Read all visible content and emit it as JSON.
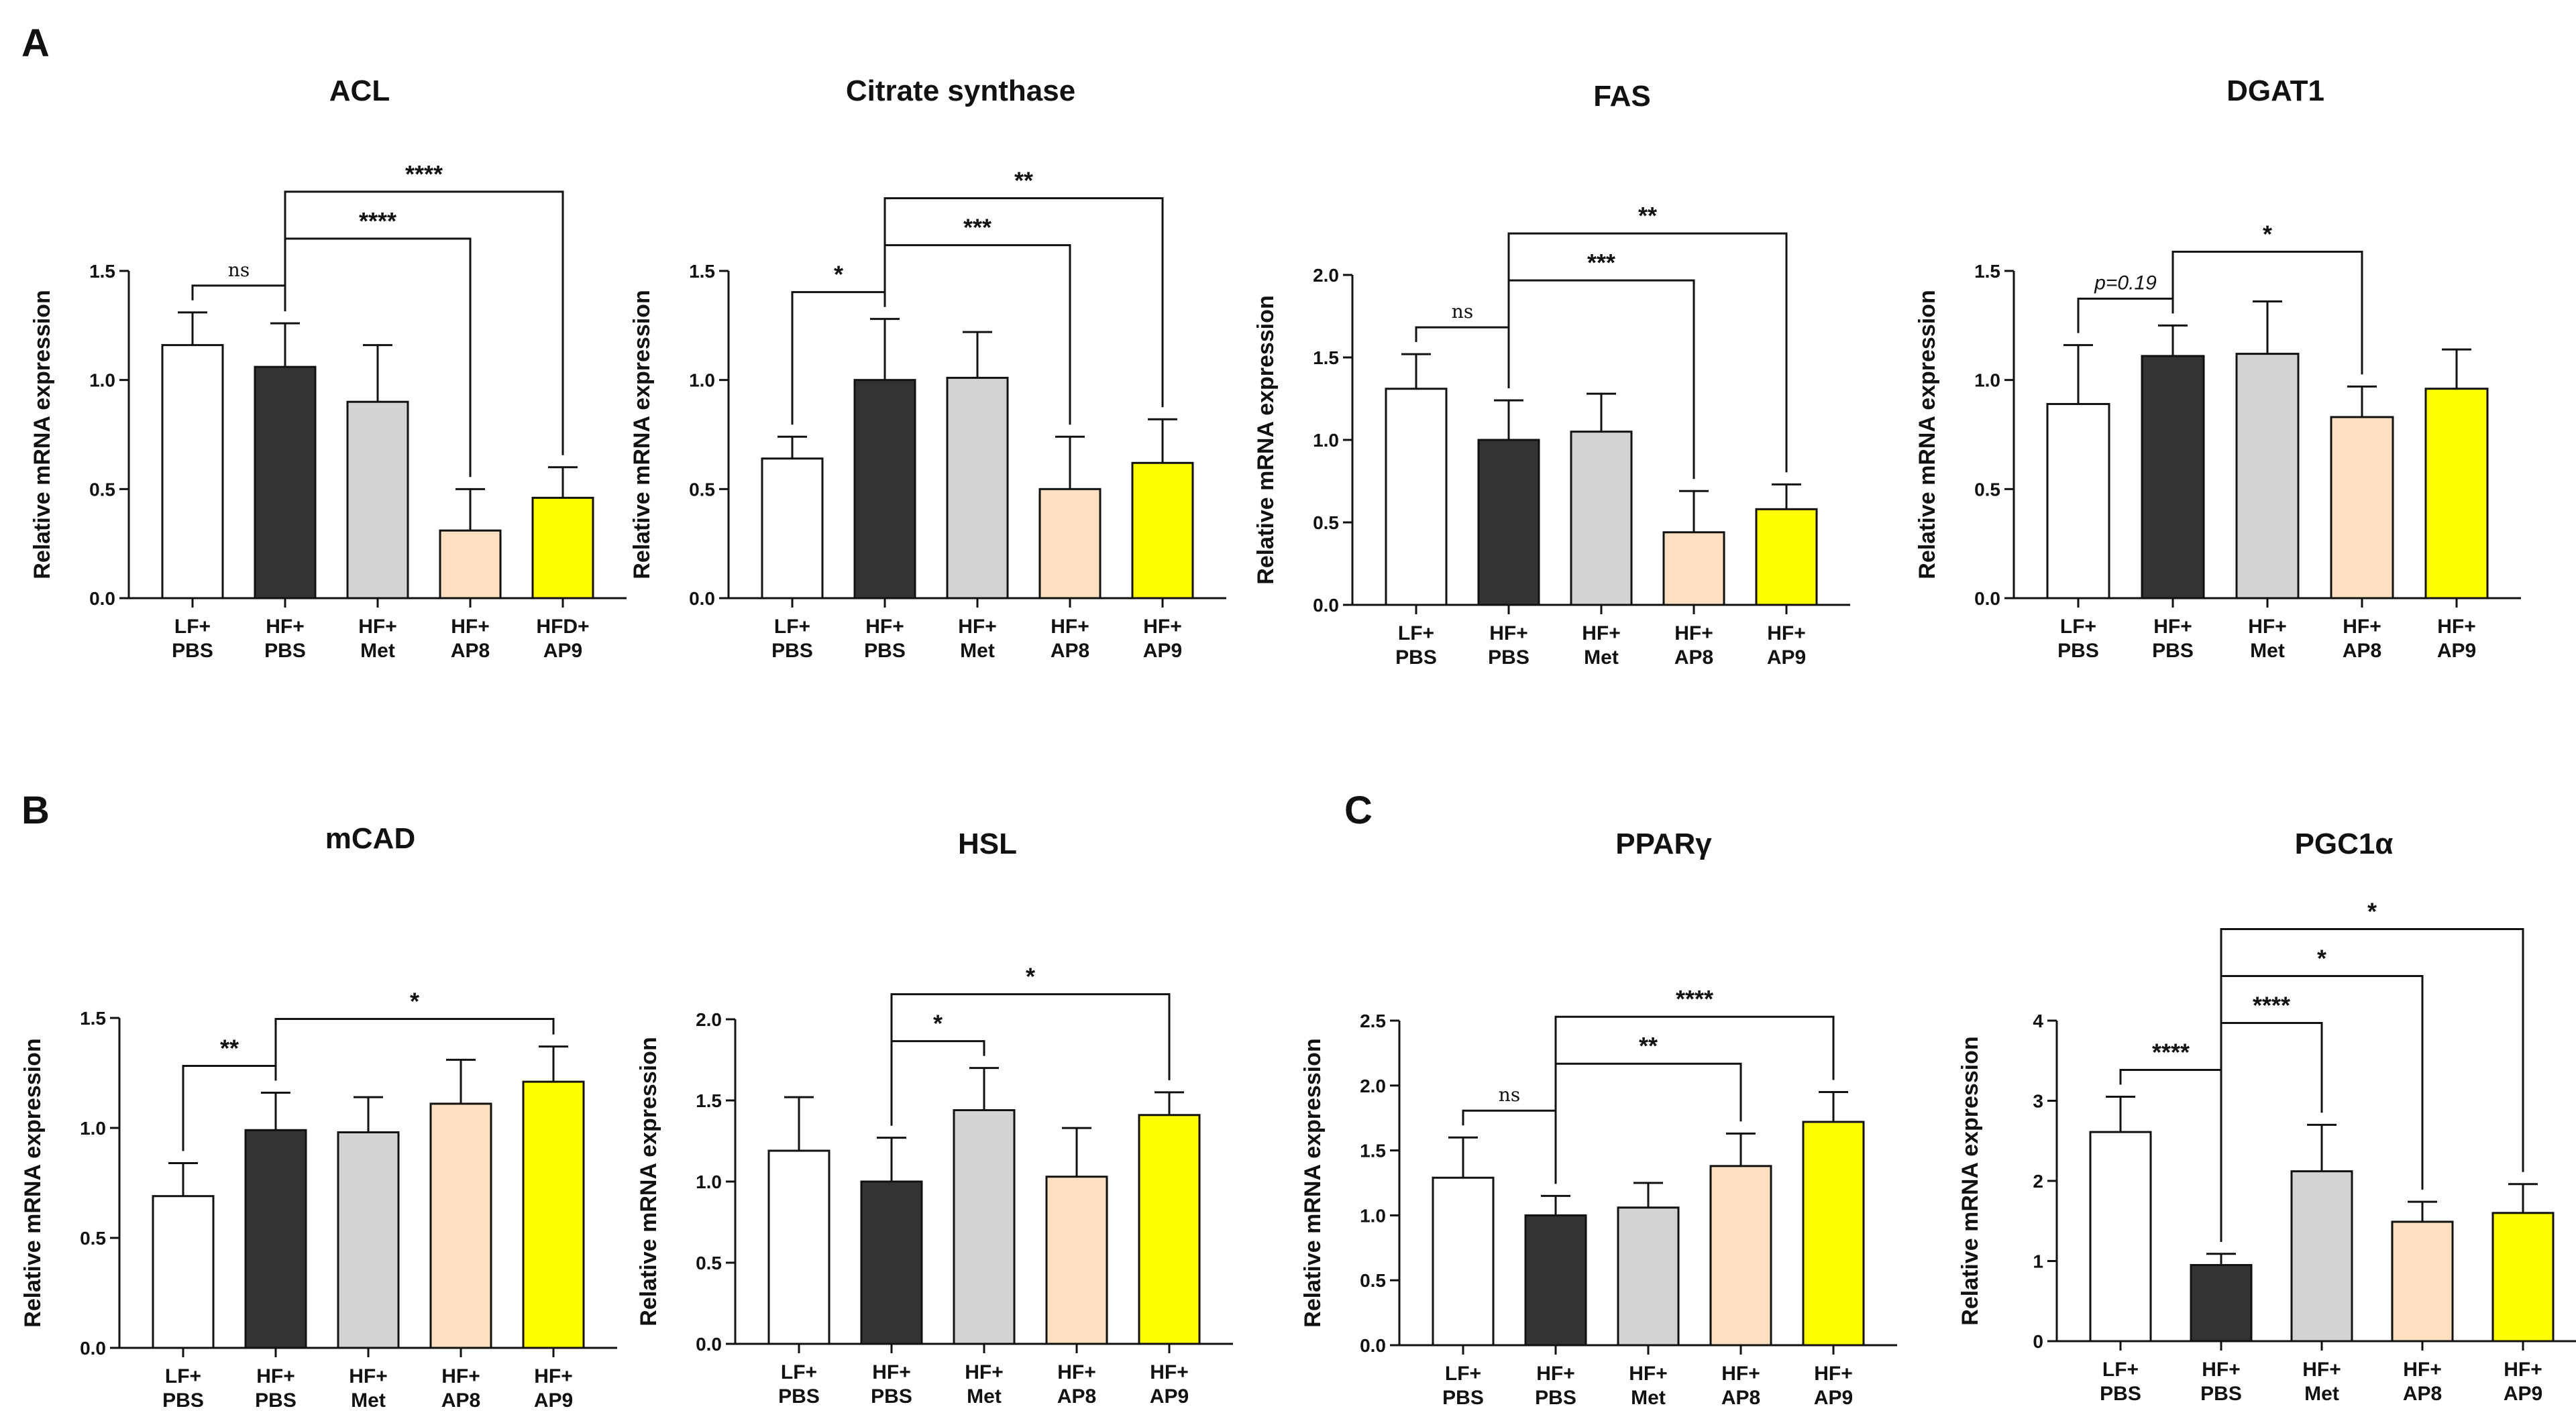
{
  "panel_labels": [
    "A",
    "B",
    "C"
  ],
  "chart_data": [
    {
      "type": "bar",
      "panel": "A",
      "title": "ACL",
      "ylabel": "Relative mRNA expression",
      "ylim": [
        0,
        1.5
      ],
      "yticks": [
        0.0,
        0.5,
        1.0,
        1.5
      ],
      "ytick_labels": [
        "0.0",
        "0.5",
        "1.0",
        "1.5"
      ],
      "categories": [
        [
          "LF+",
          "PBS"
        ],
        [
          "HF+",
          "PBS"
        ],
        [
          "HF+",
          "Met"
        ],
        [
          "HF+",
          "AP8"
        ],
        [
          "HFD+",
          "AP9"
        ]
      ],
      "colors": [
        "#ffffff",
        "#333333",
        "#d3d3d3",
        "#fddfc2",
        "#ffff00"
      ],
      "values": [
        1.16,
        1.06,
        0.9,
        0.31,
        0.46
      ],
      "errors": [
        0.15,
        0.2,
        0.26,
        0.19,
        0.14
      ],
      "significance": [
        {
          "from": 0,
          "to": 1,
          "label": "ns"
        },
        {
          "from": 1,
          "to": 3,
          "label": "****"
        },
        {
          "from": 1,
          "to": 4,
          "label": "****"
        }
      ]
    },
    {
      "type": "bar",
      "panel": "A",
      "title": "Citrate synthase",
      "ylabel": "Relative mRNA expression",
      "ylim": [
        0,
        1.5
      ],
      "yticks": [
        0.0,
        0.5,
        1.0,
        1.5
      ],
      "ytick_labels": [
        "0.0",
        "0.5",
        "1.0",
        "1.5"
      ],
      "categories": [
        [
          "LF+",
          "PBS"
        ],
        [
          "HF+",
          "PBS"
        ],
        [
          "HF+",
          "Met"
        ],
        [
          "HF+",
          "AP8"
        ],
        [
          "HF+",
          "AP9"
        ]
      ],
      "colors": [
        "#ffffff",
        "#333333",
        "#d3d3d3",
        "#fddfc2",
        "#ffff00"
      ],
      "values": [
        0.64,
        1.0,
        1.01,
        0.5,
        0.62
      ],
      "errors": [
        0.1,
        0.28,
        0.21,
        0.24,
        0.2
      ],
      "significance": [
        {
          "from": 0,
          "to": 1,
          "label": "*"
        },
        {
          "from": 1,
          "to": 3,
          "label": "***"
        },
        {
          "from": 1,
          "to": 4,
          "label": "**"
        }
      ]
    },
    {
      "type": "bar",
      "panel": "A",
      "title": "FAS",
      "ylabel": "Relative mRNA expression",
      "ylim": [
        0,
        2.0
      ],
      "yticks": [
        0.0,
        0.5,
        1.0,
        1.5,
        2.0
      ],
      "ytick_labels": [
        "0.0",
        "0.5",
        "1.0",
        "1.5",
        "2.0"
      ],
      "categories": [
        [
          "LF+",
          "PBS"
        ],
        [
          "HF+",
          "PBS"
        ],
        [
          "HF+",
          "Met"
        ],
        [
          "HF+",
          "AP8"
        ],
        [
          "HF+",
          "AP9"
        ]
      ],
      "colors": [
        "#ffffff",
        "#333333",
        "#d3d3d3",
        "#fddfc2",
        "#ffff00"
      ],
      "values": [
        1.31,
        1.0,
        1.05,
        0.44,
        0.58
      ],
      "errors": [
        0.21,
        0.24,
        0.23,
        0.25,
        0.15
      ],
      "significance": [
        {
          "from": 0,
          "to": 1,
          "label": "ns"
        },
        {
          "from": 1,
          "to": 3,
          "label": "***"
        },
        {
          "from": 1,
          "to": 4,
          "label": "**"
        }
      ]
    },
    {
      "type": "bar",
      "panel": "A",
      "title": "DGAT1",
      "ylabel": "Relative mRNA expression",
      "ylim": [
        0,
        1.5
      ],
      "yticks": [
        0.0,
        0.5,
        1.0,
        1.5
      ],
      "ytick_labels": [
        "0.0",
        "0.5",
        "1.0",
        "1.5"
      ],
      "categories": [
        [
          "LF+",
          "PBS"
        ],
        [
          "HF+",
          "PBS"
        ],
        [
          "HF+",
          "Met"
        ],
        [
          "HF+",
          "AP8"
        ],
        [
          "HF+",
          "AP9"
        ]
      ],
      "colors": [
        "#ffffff",
        "#333333",
        "#d3d3d3",
        "#fddfc2",
        "#ffff00"
      ],
      "values": [
        0.89,
        1.11,
        1.12,
        0.83,
        0.96
      ],
      "errors": [
        0.27,
        0.14,
        0.24,
        0.14,
        0.18
      ],
      "significance": [
        {
          "from": 0,
          "to": 1,
          "label": "p=0.19"
        },
        {
          "from": 1,
          "to": 3,
          "label": "*"
        }
      ]
    },
    {
      "type": "bar",
      "panel": "B",
      "title": "mCAD",
      "ylabel": "Relative mRNA expression",
      "ylim": [
        0,
        1.5
      ],
      "yticks": [
        0.0,
        0.5,
        1.0,
        1.5
      ],
      "ytick_labels": [
        "0.0",
        "0.5",
        "1.0",
        "1.5"
      ],
      "categories": [
        [
          "LF+",
          "PBS"
        ],
        [
          "HF+",
          "PBS"
        ],
        [
          "HF+",
          "Met"
        ],
        [
          "HF+",
          "AP8"
        ],
        [
          "HF+",
          "AP9"
        ]
      ],
      "colors": [
        "#ffffff",
        "#333333",
        "#d3d3d3",
        "#fddfc2",
        "#ffff00"
      ],
      "values": [
        0.69,
        0.99,
        0.98,
        1.11,
        1.21
      ],
      "errors": [
        0.15,
        0.17,
        0.16,
        0.2,
        0.16
      ],
      "significance": [
        {
          "from": 0,
          "to": 1,
          "label": "**"
        },
        {
          "from": 1,
          "to": 4,
          "label": "*"
        }
      ]
    },
    {
      "type": "bar",
      "panel": "B",
      "title": "HSL",
      "ylabel": "Relative mRNA expression",
      "ylim": [
        0,
        2.0
      ],
      "yticks": [
        0.0,
        0.5,
        1.0,
        1.5,
        2.0
      ],
      "ytick_labels": [
        "0.0",
        "0.5",
        "1.0",
        "1.5",
        "2.0"
      ],
      "categories": [
        [
          "LF+",
          "PBS"
        ],
        [
          "HF+",
          "PBS"
        ],
        [
          "HF+",
          "Met"
        ],
        [
          "HF+",
          "AP8"
        ],
        [
          "HF+",
          "AP9"
        ]
      ],
      "colors": [
        "#ffffff",
        "#333333",
        "#d3d3d3",
        "#fddfc2",
        "#ffff00"
      ],
      "values": [
        1.19,
        1.0,
        1.44,
        1.03,
        1.41
      ],
      "errors": [
        0.33,
        0.27,
        0.26,
        0.3,
        0.14
      ],
      "significance": [
        {
          "from": 1,
          "to": 2,
          "label": "*"
        },
        {
          "from": 1,
          "to": 4,
          "label": "*"
        }
      ]
    },
    {
      "type": "bar",
      "panel": "C",
      "title": "PPARγ",
      "ylabel": "Relative mRNA expression",
      "ylim": [
        0,
        2.5
      ],
      "yticks": [
        0.0,
        0.5,
        1.0,
        1.5,
        2.0,
        2.5
      ],
      "ytick_labels": [
        "0.0",
        "0.5",
        "1.0",
        "1.5",
        "2.0",
        "2.5"
      ],
      "categories": [
        [
          "LF+",
          "PBS"
        ],
        [
          "HF+",
          "PBS"
        ],
        [
          "HF+",
          "Met"
        ],
        [
          "HF+",
          "AP8"
        ],
        [
          "HF+",
          "AP9"
        ]
      ],
      "colors": [
        "#ffffff",
        "#333333",
        "#d3d3d3",
        "#fddfc2",
        "#ffff00"
      ],
      "values": [
        1.29,
        1.0,
        1.06,
        1.38,
        1.72
      ],
      "errors": [
        0.31,
        0.15,
        0.19,
        0.25,
        0.23
      ],
      "significance": [
        {
          "from": 0,
          "to": 1,
          "label": "ns"
        },
        {
          "from": 1,
          "to": 3,
          "label": "**"
        },
        {
          "from": 1,
          "to": 4,
          "label": "****"
        }
      ]
    },
    {
      "type": "bar",
      "panel": "C",
      "title": "PGC1α",
      "ylabel": "Relative mRNA expression",
      "ylim": [
        0,
        4
      ],
      "yticks": [
        0,
        1,
        2,
        3,
        4
      ],
      "ytick_labels": [
        "0",
        "1",
        "2",
        "3",
        "4"
      ],
      "categories": [
        [
          "LF+",
          "PBS"
        ],
        [
          "HF+",
          "PBS"
        ],
        [
          "HF+",
          "Met"
        ],
        [
          "HF+",
          "AP8"
        ],
        [
          "HF+",
          "AP9"
        ]
      ],
      "colors": [
        "#ffffff",
        "#333333",
        "#d3d3d3",
        "#fddfc2",
        "#ffff00"
      ],
      "values": [
        2.61,
        0.95,
        2.12,
        1.49,
        1.6
      ],
      "errors": [
        0.44,
        0.14,
        0.58,
        0.25,
        0.36
      ],
      "significance": [
        {
          "from": 0,
          "to": 1,
          "label": "****"
        },
        {
          "from": 1,
          "to": 2,
          "label": "****"
        },
        {
          "from": 1,
          "to": 3,
          "label": "*"
        },
        {
          "from": 1,
          "to": 4,
          "label": "*"
        }
      ]
    }
  ]
}
